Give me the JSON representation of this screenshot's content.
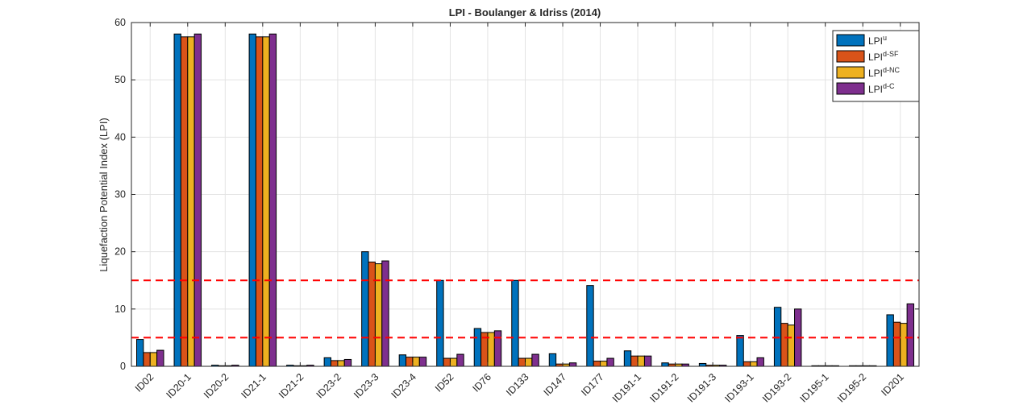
{
  "chart_data": {
    "type": "bar",
    "title": "LPI - Boulanger & Idriss (2014)",
    "xlabel": "",
    "ylabel": "Liquefaction Potential Index (LPI)",
    "ylim": [
      0,
      60
    ],
    "yticks": [
      0,
      10,
      20,
      30,
      40,
      50,
      60
    ],
    "grid": true,
    "legend_position": "top-right",
    "categories": [
      "ID02",
      "ID20-1",
      "ID20-2",
      "ID21-1",
      "ID21-2",
      "ID23-2",
      "ID23-3",
      "ID23-4",
      "ID52",
      "ID76",
      "ID133",
      "ID147",
      "ID177",
      "ID191-1",
      "ID191-2",
      "ID191-3",
      "ID193-1",
      "ID193-2",
      "ID195-1",
      "ID195-2",
      "ID201"
    ],
    "series": [
      {
        "name": "LPI",
        "sup": "u",
        "color": "#0072BD",
        "values": [
          4.7,
          58.0,
          0.2,
          58.0,
          0.2,
          1.5,
          20.0,
          2.0,
          15.0,
          6.6,
          15.0,
          2.2,
          14.1,
          2.7,
          0.6,
          0.5,
          5.4,
          10.3,
          0.1,
          0.1,
          9.0
        ]
      },
      {
        "name": "LPI",
        "sup": "d-SF",
        "color": "#D95319",
        "values": [
          2.4,
          57.5,
          0.1,
          57.5,
          0.1,
          1.0,
          18.2,
          1.6,
          1.4,
          5.9,
          1.4,
          0.4,
          0.9,
          1.8,
          0.4,
          0.2,
          0.8,
          7.5,
          0.1,
          0.1,
          7.7
        ]
      },
      {
        "name": "LPI",
        "sup": "d-NC",
        "color": "#EDB120",
        "values": [
          2.4,
          57.5,
          0.1,
          57.5,
          0.1,
          1.0,
          17.9,
          1.6,
          1.4,
          5.9,
          1.4,
          0.4,
          0.9,
          1.8,
          0.4,
          0.2,
          0.8,
          7.2,
          0.1,
          0.1,
          7.5
        ]
      },
      {
        "name": "LPI",
        "sup": "d-C",
        "color": "#7E2F8E",
        "values": [
          2.8,
          58.0,
          0.2,
          58.0,
          0.2,
          1.2,
          18.4,
          1.6,
          2.1,
          6.2,
          2.1,
          0.6,
          1.4,
          1.8,
          0.4,
          0.2,
          1.5,
          10.0,
          0.1,
          0.1,
          10.9
        ]
      }
    ],
    "reference_lines": [
      {
        "y": 5,
        "color": "#FF0000",
        "style": "dashed"
      },
      {
        "y": 15,
        "color": "#FF0000",
        "style": "dashed"
      }
    ]
  }
}
